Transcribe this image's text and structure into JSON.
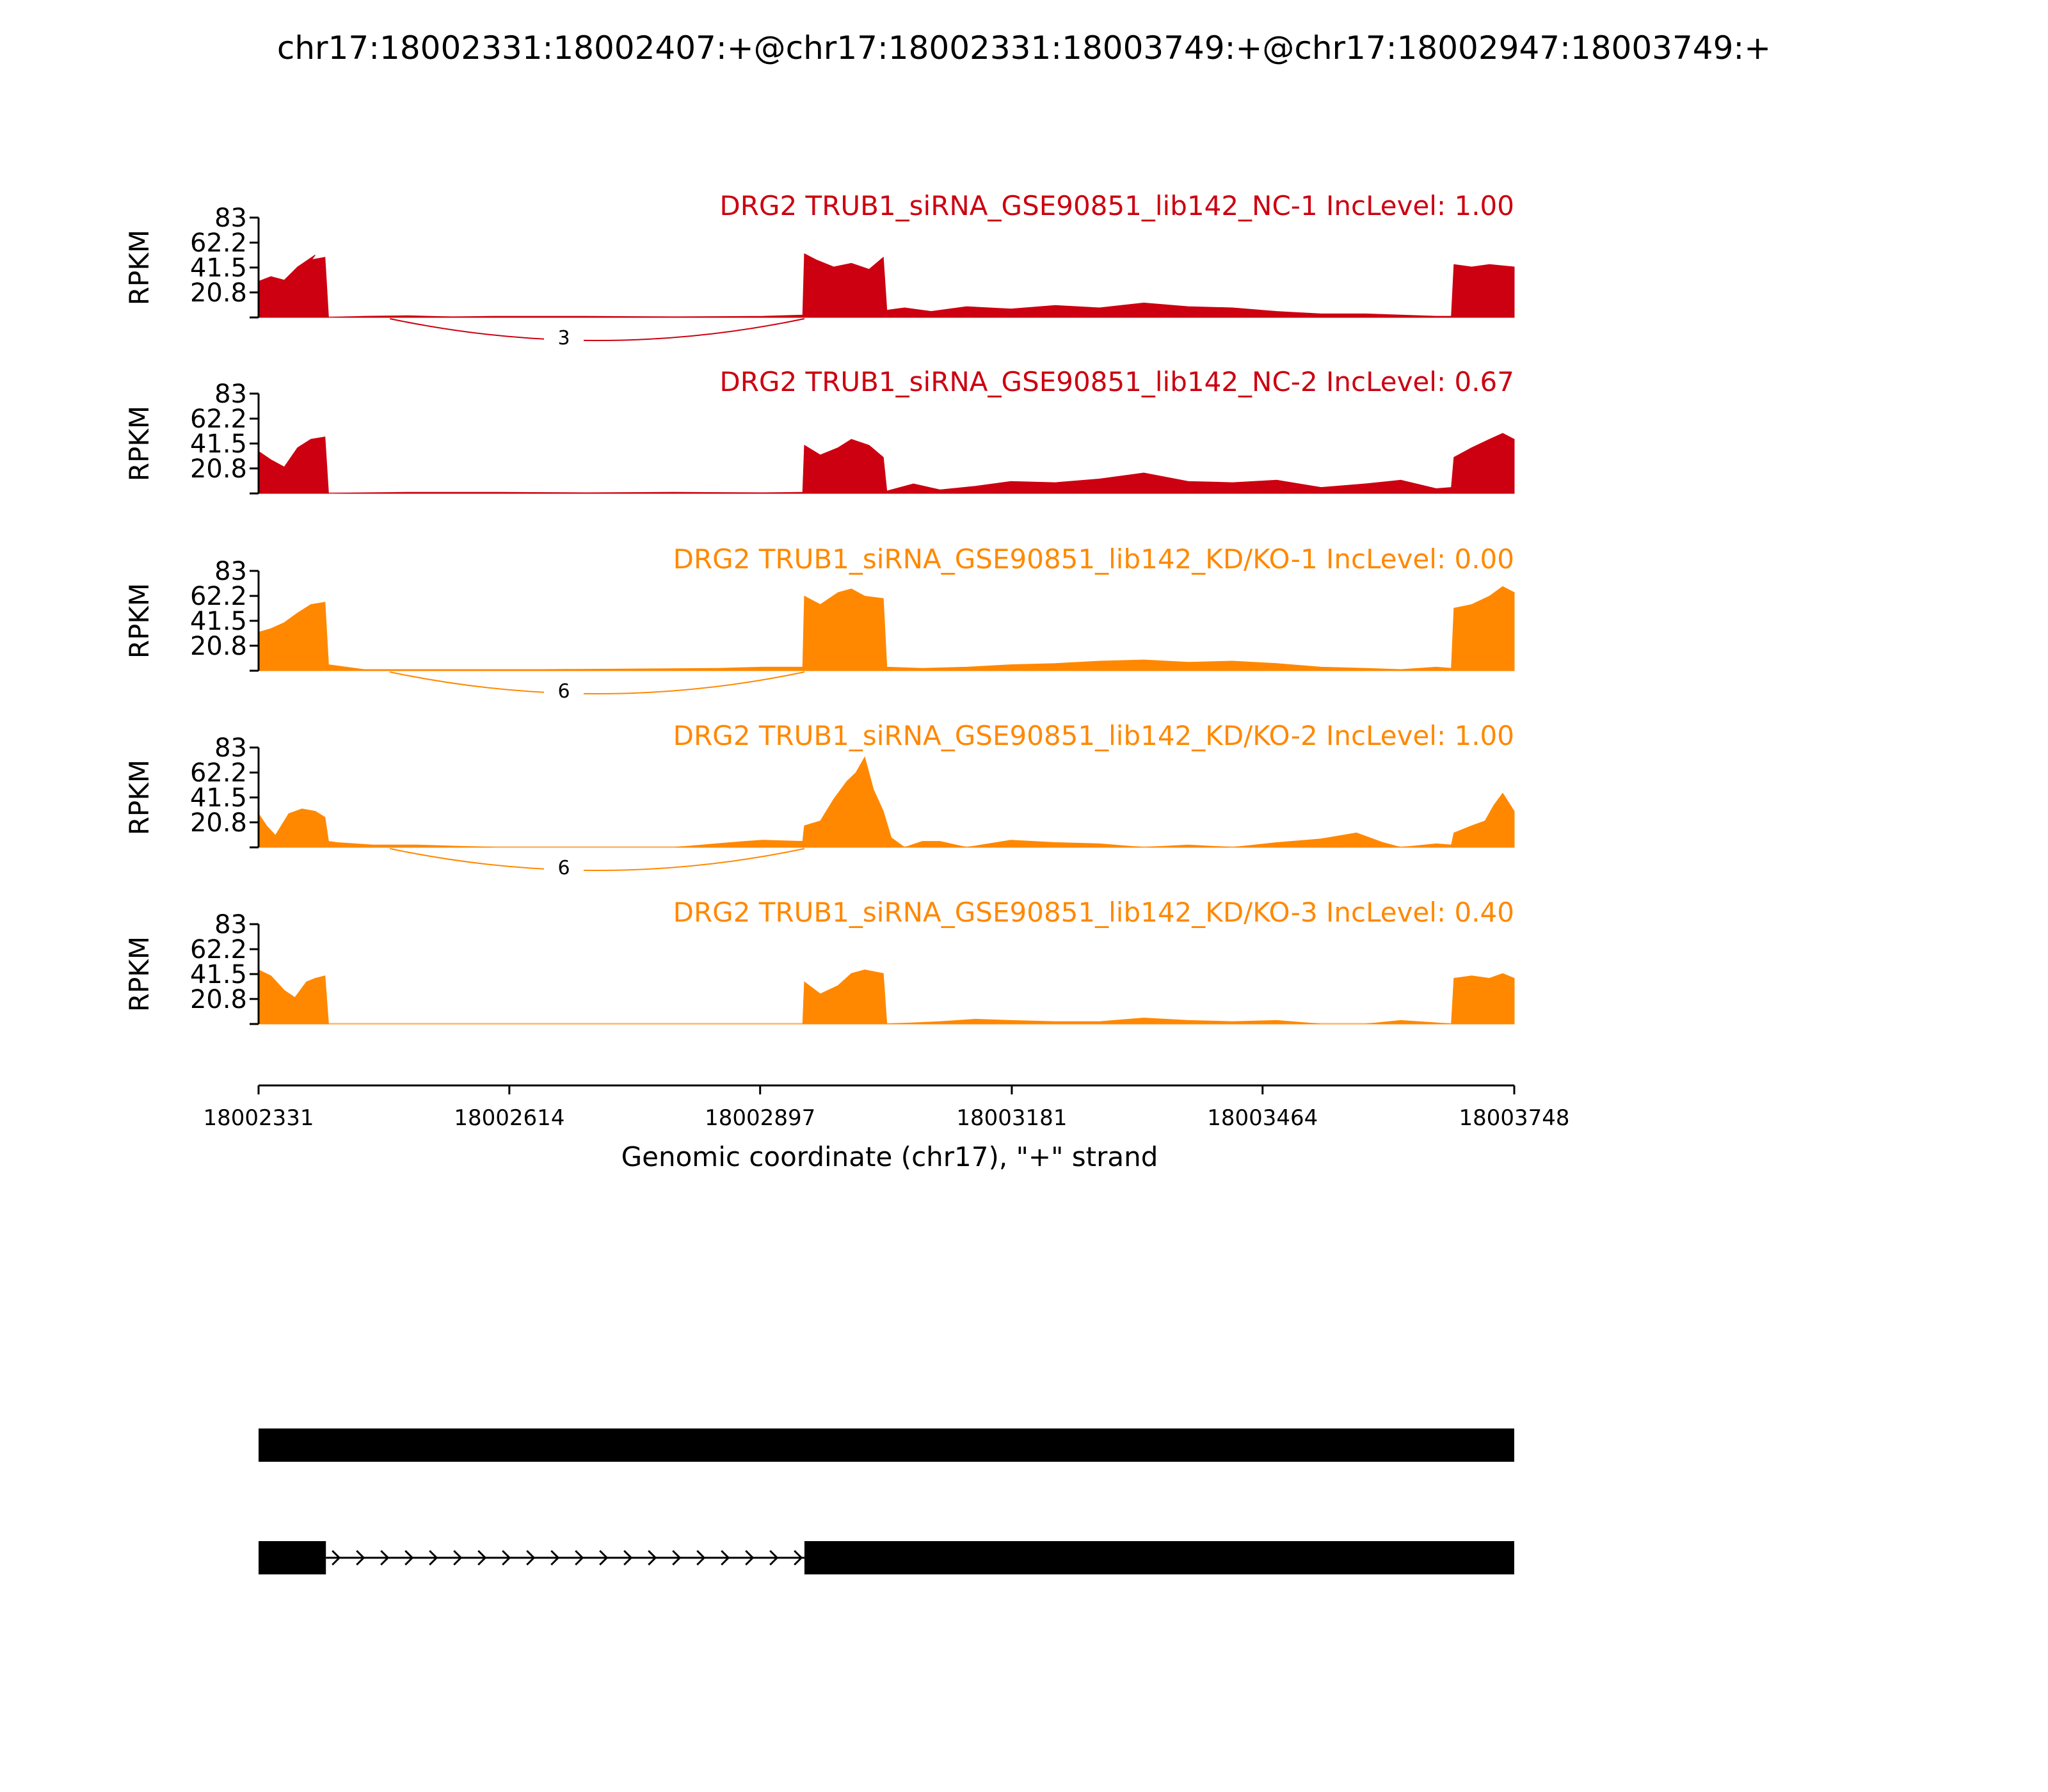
{
  "title": "chr17:18002331:18002407:+@chr17:18002331:18003749:+@chr17:18002947:18003749:+",
  "colors": {
    "nc": "#cc0010",
    "kd": "#ff8800",
    "axis": "#000000",
    "gene": "#000000"
  },
  "chart_data": {
    "type": "area",
    "title": "chr17:18002331:18002407:+@chr17:18002331:18003749:+@chr17:18002947:18003749:+",
    "xlabel": "Genomic coordinate (chr17), \"+\" strand",
    "ylabel": "RPKM",
    "xlim": [
      18002331,
      18003748
    ],
    "ylim": [
      0,
      83
    ],
    "x_ticks": [
      "18002331",
      "18002614",
      "18002897",
      "18003181",
      "18003464",
      "18003748"
    ],
    "y_ticks": [
      "20.8",
      "41.5",
      "62.2",
      "83"
    ],
    "tracks": [
      {
        "label": "DRG2 TRUB1_siRNA_GSE90851_lib142_NC-1 IncLevel: 1.00",
        "group": "nc",
        "junction": {
          "from": 18002407,
          "to": 18002947,
          "count": "3"
        },
        "x": [
          18002331,
          18002345,
          18002360,
          18002375,
          18002385,
          18002395,
          18002391,
          18002406,
          18002410,
          18002450,
          18002500,
          18002550,
          18002600,
          18002700,
          18002800,
          18002900,
          18002945,
          18002947,
          18002960,
          18002980,
          18003000,
          18003020,
          18003036,
          18003040,
          18003060,
          18003090,
          18003130,
          18003180,
          18003230,
          18003280,
          18003330,
          18003380,
          18003430,
          18003480,
          18003530,
          18003580,
          18003620,
          18003660,
          18003677,
          18003680,
          18003700,
          18003720,
          18003748
        ],
        "y": [
          30,
          34,
          31,
          42,
          47,
          52,
          48,
          50,
          0,
          1,
          1.5,
          0.5,
          1,
          1,
          0.5,
          1,
          2,
          53,
          48,
          42,
          45,
          40,
          50,
          6,
          8,
          5,
          9,
          7,
          10,
          8,
          12,
          9,
          8,
          5,
          3,
          3,
          2,
          1,
          1,
          44,
          42,
          44,
          42
        ]
      },
      {
        "label": "DRG2 TRUB1_siRNA_GSE90851_lib142_NC-2 IncLevel: 0.67",
        "group": "nc",
        "junction": null,
        "x": [
          18002331,
          18002345,
          18002360,
          18002375,
          18002390,
          18002406,
          18002410,
          18002500,
          18002600,
          18002700,
          18002800,
          18002900,
          18002945,
          18002947,
          18002965,
          18002985,
          18003000,
          18003020,
          18003036,
          18003040,
          18003070,
          18003100,
          18003140,
          18003180,
          18003230,
          18003280,
          18003330,
          18003380,
          18003430,
          18003480,
          18003530,
          18003580,
          18003620,
          18003660,
          18003677,
          18003680,
          18003700,
          18003720,
          18003735,
          18003748
        ],
        "y": [
          35,
          28,
          22,
          38,
          45,
          47,
          0,
          1,
          1,
          0.5,
          1,
          0.5,
          1,
          40,
          32,
          38,
          45,
          40,
          30,
          2,
          8,
          3,
          6,
          10,
          9,
          12,
          17,
          10,
          9,
          11,
          5,
          8,
          11,
          4,
          5,
          30,
          38,
          45,
          50,
          45
        ]
      },
      {
        "label": "DRG2 TRUB1_siRNA_GSE90851_lib142_KD/KO-1 IncLevel: 0.00",
        "group": "kd",
        "junction": {
          "from": 18002407,
          "to": 18002947,
          "count": "6"
        },
        "x": [
          18002331,
          18002345,
          18002360,
          18002375,
          18002390,
          18002406,
          18002410,
          18002420,
          18002450,
          18002550,
          18002650,
          18002750,
          18002850,
          18002900,
          18002945,
          18002947,
          18002965,
          18002985,
          18003000,
          18003015,
          18003036,
          18003040,
          18003080,
          18003130,
          18003180,
          18003230,
          18003280,
          18003330,
          18003380,
          18003430,
          18003480,
          18003530,
          18003580,
          18003620,
          18003660,
          18003677,
          18003680,
          18003700,
          18003720,
          18003735,
          18003748
        ],
        "y": [
          32,
          35,
          40,
          48,
          55,
          57,
          5,
          4,
          1,
          1,
          1,
          1.5,
          2,
          3,
          3,
          62,
          55,
          65,
          68,
          62,
          60,
          3,
          2,
          3,
          5,
          6,
          8,
          9,
          7,
          8,
          6,
          3,
          2,
          1,
          3,
          2,
          52,
          55,
          62,
          70,
          65
        ]
      },
      {
        "label": "DRG2 TRUB1_siRNA_GSE90851_lib142_KD/KO-2 IncLevel: 1.00",
        "group": "kd",
        "junction": {
          "from": 18002407,
          "to": 18002947,
          "count": "6"
        },
        "x": [
          18002331,
          18002340,
          18002350,
          18002365,
          18002380,
          18002395,
          18002406,
          18002410,
          18002420,
          18002460,
          18002510,
          18002600,
          18002700,
          18002800,
          18002880,
          18002900,
          18002945,
          18002947,
          18002965,
          18002980,
          18002995,
          18003005,
          18003015,
          18003025,
          18003036,
          18003045,
          18003060,
          18003080,
          18003100,
          18003130,
          18003180,
          18003230,
          18003280,
          18003330,
          18003380,
          18003430,
          18003480,
          18003530,
          18003570,
          18003600,
          18003620,
          18003660,
          18003677,
          18003680,
          18003700,
          18003715,
          18003725,
          18003735,
          18003748
        ],
        "y": [
          28,
          18,
          10,
          28,
          32,
          30,
          25,
          5,
          4,
          2,
          2,
          0,
          0,
          0,
          5,
          6,
          5,
          18,
          22,
          40,
          55,
          62,
          75,
          48,
          30,
          8,
          0,
          5,
          5,
          0,
          6,
          4,
          3,
          0,
          2,
          0,
          4,
          7,
          12,
          4,
          0,
          3,
          2,
          12,
          18,
          22,
          35,
          45,
          30
        ]
      },
      {
        "label": "DRG2 TRUB1_siRNA_GSE90851_lib142_KD/KO-3 IncLevel: 0.40",
        "group": "kd",
        "junction": null,
        "x": [
          18002331,
          18002345,
          18002360,
          18002372,
          18002385,
          18002395,
          18002406,
          18002410,
          18002500,
          18002600,
          18002700,
          18002800,
          18002900,
          18002945,
          18002947,
          18002965,
          18002985,
          18003000,
          18003015,
          18003036,
          18003040,
          18003100,
          18003140,
          18003180,
          18003230,
          18003280,
          18003330,
          18003380,
          18003430,
          18003480,
          18003530,
          18003580,
          18003620,
          18003660,
          18003677,
          18003680,
          18003700,
          18003720,
          18003735,
          18003748
        ],
        "y": [
          45,
          40,
          28,
          22,
          35,
          38,
          40,
          0,
          0,
          0,
          0,
          0,
          0,
          0,
          35,
          25,
          32,
          42,
          45,
          42,
          0,
          2,
          4,
          3,
          2,
          2,
          5,
          3,
          2,
          3,
          0,
          0,
          3,
          1,
          0,
          38,
          40,
          38,
          42,
          38
        ]
      }
    ],
    "gene_models": [
      {
        "exons": [
          [
            18002331,
            18003748
          ]
        ],
        "intron_arrows": false
      },
      {
        "exons": [
          [
            18002331,
            18002407
          ],
          [
            18002947,
            18003748
          ]
        ],
        "intron_arrows": true
      }
    ]
  }
}
